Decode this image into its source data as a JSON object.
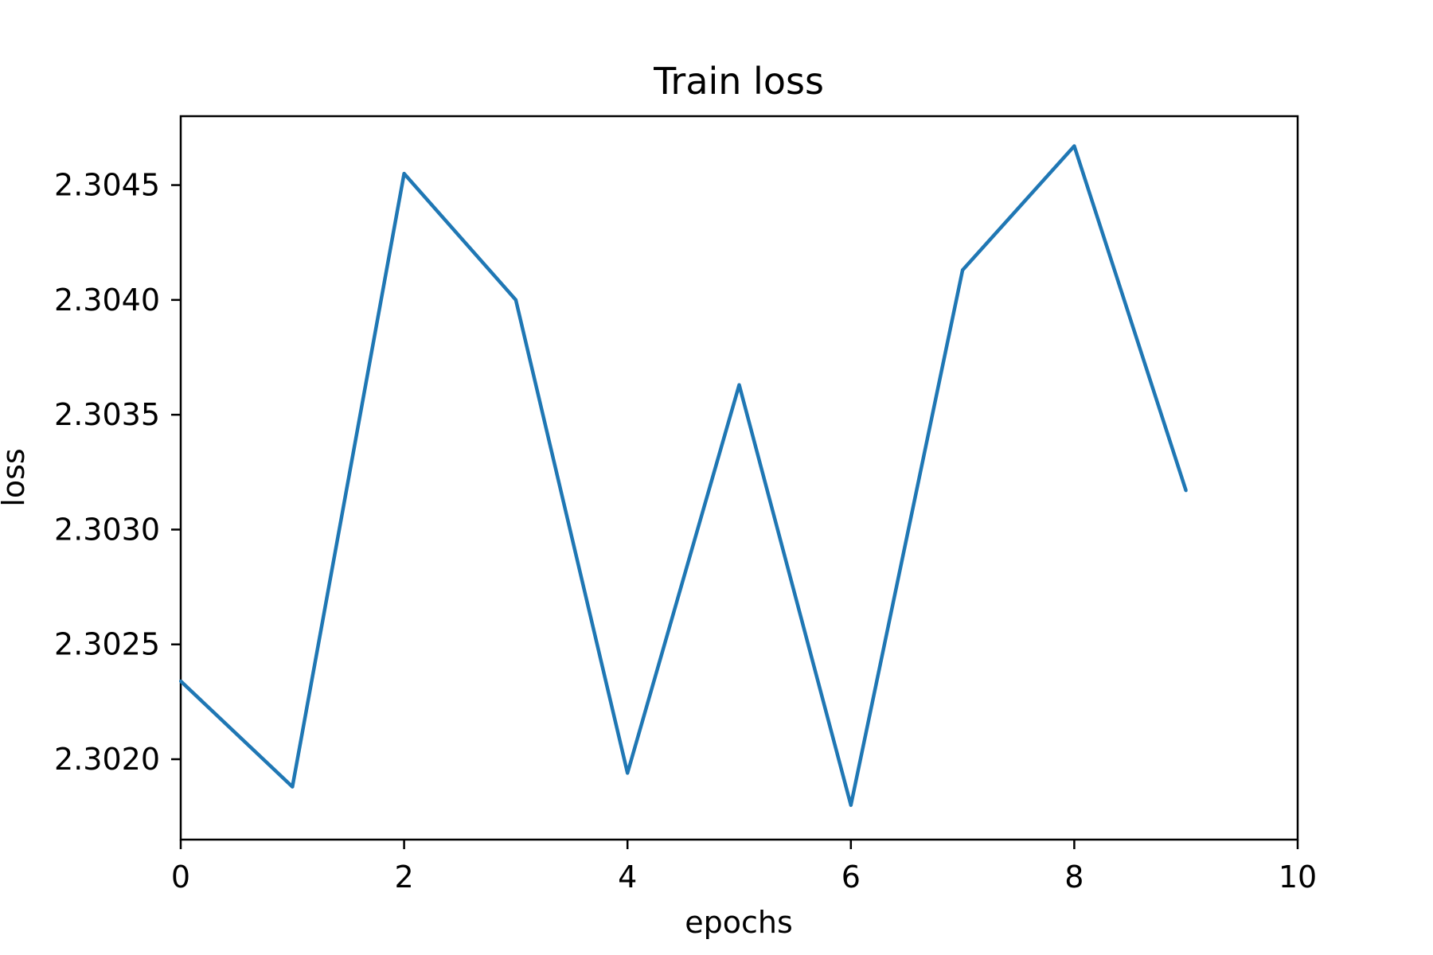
{
  "chart_data": {
    "type": "line",
    "title": "Train loss",
    "xlabel": "epochs",
    "ylabel": "loss",
    "xlim": [
      0,
      10
    ],
    "ylim": [
      2.30165,
      2.3048
    ],
    "xticks": [
      0,
      2,
      4,
      6,
      8,
      10
    ],
    "xtick_labels": [
      "0",
      "2",
      "4",
      "6",
      "8",
      "10"
    ],
    "yticks": [
      2.302,
      2.3025,
      2.303,
      2.3035,
      2.304,
      2.3045
    ],
    "ytick_labels": [
      "2.3020",
      "2.3025",
      "2.3030",
      "2.3035",
      "2.3040",
      "2.3045"
    ],
    "grid": false,
    "legend": false,
    "series": [
      {
        "color": "#1f77b4",
        "x": [
          0,
          1,
          2,
          3,
          4,
          5,
          6,
          7,
          8,
          9
        ],
        "y": [
          2.30234,
          2.30188,
          2.30455,
          2.304,
          2.30194,
          2.30363,
          2.3018,
          2.30413,
          2.30467,
          2.30317
        ]
      }
    ]
  }
}
